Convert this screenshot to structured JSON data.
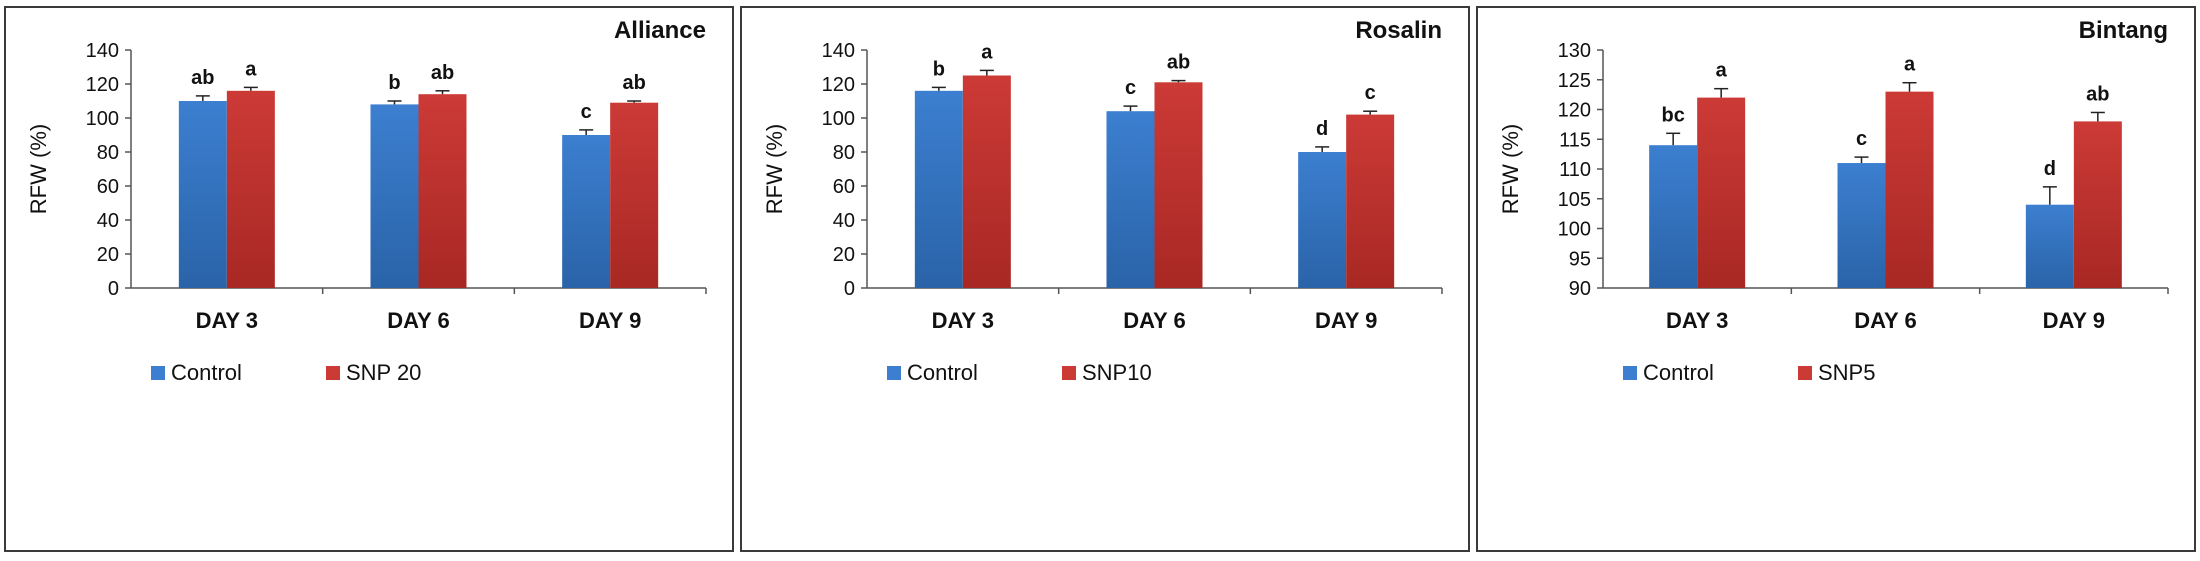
{
  "colors": {
    "control": "#3c7fd0",
    "treatment": "#cc3a36"
  },
  "chart_data": [
    {
      "type": "bar",
      "title": "Alliance",
      "ylabel": "RFW (%)",
      "ylim": [
        0,
        140
      ],
      "ytick_step": 20,
      "categories": [
        "DAY 3",
        "DAY 6",
        "DAY 9"
      ],
      "series": [
        {
          "name": "Control",
          "values": [
            110,
            108,
            90
          ],
          "errors": [
            3,
            2,
            3
          ],
          "labels": [
            "ab",
            "b",
            "c"
          ]
        },
        {
          "name": "SNP 20",
          "values": [
            116,
            114,
            109
          ],
          "errors": [
            2,
            2,
            1
          ],
          "labels": [
            "a",
            "ab",
            "ab"
          ]
        }
      ]
    },
    {
      "type": "bar",
      "title": "Rosalin",
      "ylabel": "RFW (%)",
      "ylim": [
        0,
        140
      ],
      "ytick_step": 20,
      "categories": [
        "DAY 3",
        "DAY 6",
        "DAY 9"
      ],
      "series": [
        {
          "name": "Control",
          "values": [
            116,
            104,
            80
          ],
          "errors": [
            2,
            3,
            3
          ],
          "labels": [
            "b",
            "c",
            "d"
          ]
        },
        {
          "name": "SNP10",
          "values": [
            125,
            121,
            102
          ],
          "errors": [
            3,
            1,
            2
          ],
          "labels": [
            "a",
            "ab",
            "c"
          ]
        }
      ]
    },
    {
      "type": "bar",
      "title": "Bintang",
      "ylabel": "RFW (%)",
      "ylim": [
        90,
        130
      ],
      "ytick_step": 5,
      "categories": [
        "DAY 3",
        "DAY 6",
        "DAY 9"
      ],
      "series": [
        {
          "name": "Control",
          "values": [
            114,
            111,
            104
          ],
          "errors": [
            2,
            1,
            3
          ],
          "labels": [
            "bc",
            "c",
            "d"
          ]
        },
        {
          "name": "SNP5",
          "values": [
            122,
            123,
            118
          ],
          "errors": [
            1.5,
            1.5,
            1.5
          ],
          "labels": [
            "a",
            "a",
            "ab"
          ]
        }
      ]
    }
  ]
}
